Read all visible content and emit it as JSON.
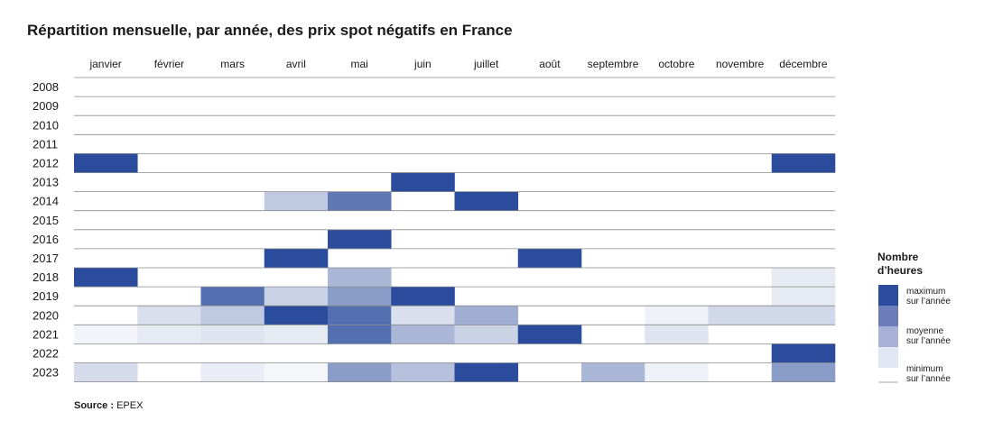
{
  "chart_data": {
    "type": "heatmap",
    "title": "Répartition mensuelle, par année, des prix spot négatifs en France",
    "x_categories": [
      "janvier",
      "février",
      "mars",
      "avril",
      "mai",
      "juin",
      "juillet",
      "août",
      "septembre",
      "octobre",
      "novembre",
      "décembre"
    ],
    "y_categories": [
      "2008",
      "2009",
      "2010",
      "2011",
      "2012",
      "2013",
      "2014",
      "2015",
      "2016",
      "2017",
      "2018",
      "2019",
      "2020",
      "2021",
      "2022",
      "2023"
    ],
    "value_scale": "level 0 = minimum sur l'année, level 1 = maximum sur l'année (relative within each year)",
    "values": [
      [
        0,
        0,
        0,
        0,
        0,
        0,
        0,
        0,
        0,
        0,
        0,
        0
      ],
      [
        0,
        0,
        0,
        0,
        0,
        0,
        0,
        0,
        0,
        0,
        0,
        0
      ],
      [
        0,
        0,
        0,
        0,
        0,
        0,
        0,
        0,
        0,
        0,
        0,
        0
      ],
      [
        0,
        0,
        0,
        0,
        0,
        0,
        0,
        0,
        0,
        0,
        0,
        0
      ],
      [
        1,
        0,
        0,
        0,
        0,
        0,
        0,
        0,
        0,
        0,
        0,
        1
      ],
      [
        0,
        0,
        0,
        0,
        0,
        1,
        0,
        0,
        0,
        0,
        0,
        0
      ],
      [
        0,
        0,
        0,
        0.3,
        0.75,
        0,
        1,
        0,
        0,
        0,
        0,
        0
      ],
      [
        0,
        0,
        0,
        0,
        0,
        0,
        0,
        0,
        0,
        0,
        0,
        0
      ],
      [
        0,
        0,
        0,
        0,
        1,
        0,
        0,
        0,
        0,
        0,
        0,
        0
      ],
      [
        0,
        0,
        0,
        1,
        0,
        0,
        0,
        1,
        0,
        0,
        0,
        0
      ],
      [
        1,
        0,
        0,
        0,
        0.4,
        0,
        0,
        0,
        0,
        0,
        0,
        0.12
      ],
      [
        0,
        0,
        0.8,
        0.25,
        0.55,
        1,
        0,
        0,
        0,
        0,
        0,
        0.12
      ],
      [
        0,
        0.18,
        0.3,
        1,
        0.8,
        0.18,
        0.45,
        0,
        0,
        0.08,
        0.22,
        0.22
      ],
      [
        0.06,
        0.12,
        0.15,
        0.12,
        0.8,
        0.4,
        0.25,
        1,
        0,
        0.15,
        0,
        0
      ],
      [
        0,
        0,
        0,
        0,
        0,
        0,
        0,
        0,
        0,
        0,
        0,
        1
      ],
      [
        0.2,
        0,
        0.1,
        0.05,
        0.55,
        0.35,
        1,
        0,
        0.4,
        0.08,
        0,
        0.55
      ]
    ],
    "legend": {
      "title_line1": "Nombre",
      "title_line2": "d’heures",
      "max_line1": "maximum",
      "max_line2": "sur l’année",
      "mid_line1": "moyenne",
      "mid_line2": "sur l’année",
      "min_line1": "minimum",
      "min_line2": "sur l’année",
      "placement": "right"
    },
    "colors": {
      "low": "#ffffff",
      "high": "#2b4c9c",
      "grid": "#8a8a8a",
      "legend_swatches": [
        "#2b4c9c",
        "#6d7dbc",
        "#aab1d8",
        "#e3e6f3"
      ]
    },
    "grid": true
  },
  "source": {
    "label": "Source :",
    "value": "EPEX"
  }
}
